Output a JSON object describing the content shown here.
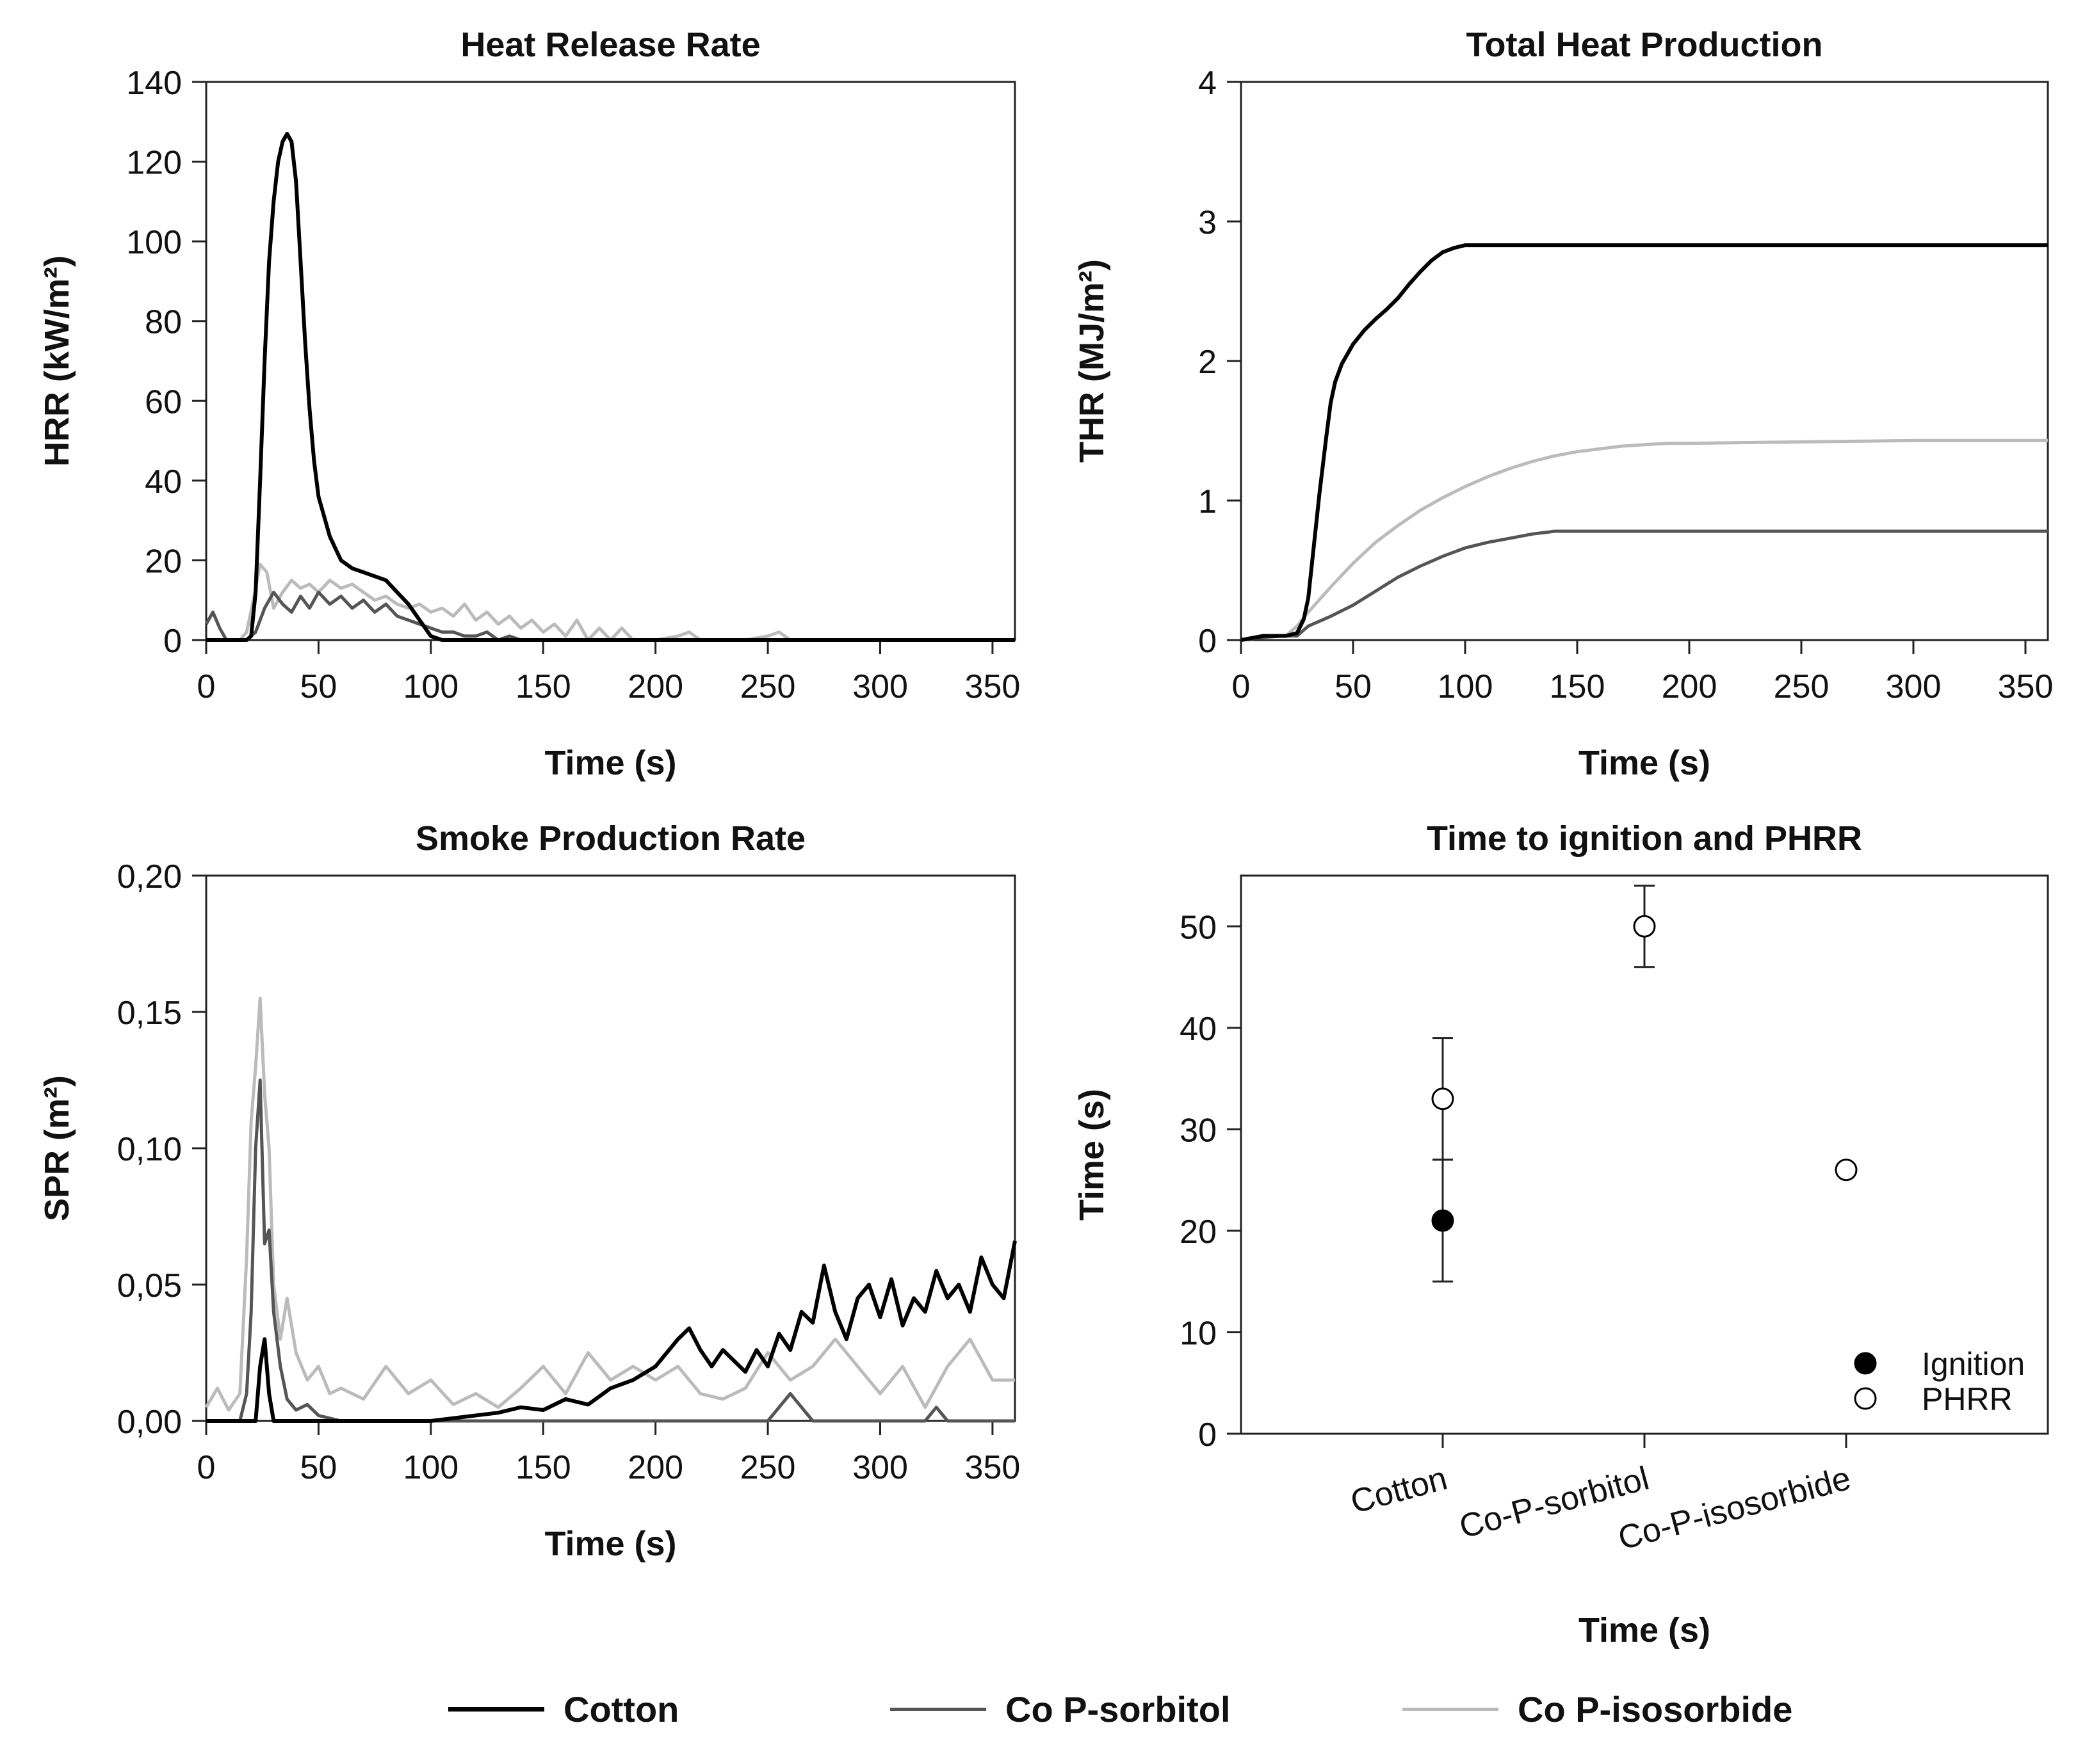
{
  "chart_data": [
    {
      "id": "hrr",
      "type": "line",
      "title": "Heat Release Rate",
      "xlabel": "Time (s)",
      "ylabel": "HRR (kW/m²)",
      "xlim": [
        0,
        360
      ],
      "ylim": [
        0,
        140
      ],
      "xticks": [
        0,
        50,
        100,
        150,
        200,
        250,
        300,
        350
      ],
      "yticks": [
        0,
        20,
        40,
        60,
        80,
        100,
        120,
        140
      ],
      "ytick_labels": [
        "0",
        "20",
        "40",
        "60",
        "80",
        "100",
        "120",
        "140"
      ],
      "series": [
        {
          "name": "Cotton",
          "color": "#000000",
          "x": [
            0,
            5,
            10,
            15,
            18,
            20,
            22,
            24,
            26,
            28,
            30,
            32,
            34,
            36,
            38,
            40,
            42,
            44,
            46,
            48,
            50,
            55,
            60,
            65,
            70,
            75,
            80,
            85,
            90,
            95,
            100,
            105,
            110,
            120,
            150,
            200,
            250,
            300,
            360
          ],
          "y": [
            0,
            0,
            0,
            0,
            0,
            1,
            12,
            40,
            70,
            95,
            110,
            120,
            125,
            127,
            125,
            115,
            95,
            75,
            58,
            45,
            36,
            26,
            20,
            18,
            17,
            16,
            15,
            12,
            9,
            5,
            1,
            0,
            0,
            0,
            0,
            0,
            0,
            0,
            0
          ]
        },
        {
          "name": "Co P-sorbitol",
          "color": "#555555",
          "x": [
            0,
            3,
            6,
            9,
            12,
            15,
            18,
            22,
            26,
            30,
            34,
            38,
            42,
            46,
            50,
            55,
            60,
            65,
            70,
            75,
            80,
            85,
            90,
            95,
            100,
            105,
            110,
            115,
            120,
            125,
            130,
            135,
            140,
            150,
            200,
            250,
            300,
            360
          ],
          "y": [
            4,
            7,
            3,
            0,
            0,
            0,
            0,
            2,
            8,
            12,
            9,
            7,
            11,
            8,
            12,
            9,
            11,
            8,
            10,
            7,
            9,
            6,
            5,
            4,
            3,
            2,
            2,
            1,
            1,
            2,
            0,
            1,
            0,
            0,
            0,
            0,
            0,
            0
          ]
        },
        {
          "name": "Co P-isosorbide",
          "color": "#bbbbbb",
          "x": [
            0,
            5,
            10,
            15,
            18,
            21,
            24,
            27,
            30,
            34,
            38,
            42,
            46,
            50,
            55,
            60,
            65,
            70,
            75,
            80,
            85,
            90,
            95,
            100,
            105,
            110,
            115,
            120,
            125,
            130,
            135,
            140,
            145,
            150,
            155,
            160,
            165,
            170,
            175,
            180,
            185,
            190,
            200,
            210,
            215,
            220,
            240,
            250,
            255,
            260,
            280,
            300,
            360
          ],
          "y": [
            0,
            0,
            0,
            0,
            2,
            10,
            19,
            17,
            8,
            12,
            15,
            13,
            14,
            12,
            15,
            13,
            14,
            12,
            10,
            11,
            9,
            8,
            9,
            7,
            8,
            6,
            9,
            5,
            7,
            4,
            6,
            3,
            5,
            2,
            4,
            1,
            5,
            0,
            3,
            0,
            3,
            0,
            0,
            1,
            2,
            0,
            0,
            1,
            2,
            0,
            0,
            0,
            0
          ]
        }
      ]
    },
    {
      "id": "thr",
      "type": "line",
      "title": "Total Heat Production",
      "xlabel": "Time (s)",
      "ylabel": "THR (MJ/m²)",
      "xlim": [
        0,
        360
      ],
      "ylim": [
        0,
        4
      ],
      "xticks": [
        0,
        50,
        100,
        150,
        200,
        250,
        300,
        350
      ],
      "yticks": [
        0,
        1,
        2,
        3,
        4
      ],
      "ytick_labels": [
        "0",
        "1",
        "2",
        "3",
        "4"
      ],
      "series": [
        {
          "name": "Cotton",
          "color": "#000000",
          "x": [
            0,
            10,
            20,
            25,
            28,
            30,
            32,
            35,
            38,
            40,
            42,
            45,
            50,
            55,
            60,
            65,
            70,
            75,
            80,
            85,
            90,
            95,
            100,
            110,
            150,
            200,
            250,
            300,
            360
          ],
          "y": [
            0,
            0.03,
            0.03,
            0.05,
            0.15,
            0.3,
            0.6,
            1.05,
            1.45,
            1.7,
            1.85,
            1.98,
            2.12,
            2.22,
            2.3,
            2.37,
            2.45,
            2.55,
            2.64,
            2.72,
            2.78,
            2.81,
            2.83,
            2.83,
            2.83,
            2.83,
            2.83,
            2.83,
            2.83
          ]
        },
        {
          "name": "Co P-sorbitol",
          "color": "#555555",
          "x": [
            0,
            10,
            20,
            25,
            30,
            40,
            50,
            60,
            70,
            80,
            90,
            100,
            110,
            120,
            130,
            140,
            150,
            200,
            250,
            300,
            360
          ],
          "y": [
            0,
            0.02,
            0.03,
            0.03,
            0.1,
            0.17,
            0.25,
            0.35,
            0.45,
            0.53,
            0.6,
            0.66,
            0.7,
            0.73,
            0.76,
            0.78,
            0.78,
            0.78,
            0.78,
            0.78,
            0.78
          ]
        },
        {
          "name": "Co P-isosorbide",
          "color": "#bbbbbb",
          "x": [
            0,
            10,
            20,
            25,
            30,
            40,
            50,
            60,
            70,
            80,
            90,
            100,
            110,
            120,
            130,
            140,
            150,
            160,
            170,
            180,
            190,
            200,
            250,
            300,
            360
          ],
          "y": [
            0,
            0.02,
            0.03,
            0.1,
            0.2,
            0.38,
            0.55,
            0.7,
            0.82,
            0.93,
            1.02,
            1.1,
            1.17,
            1.23,
            1.28,
            1.32,
            1.35,
            1.37,
            1.39,
            1.4,
            1.41,
            1.41,
            1.42,
            1.43,
            1.43
          ]
        }
      ]
    },
    {
      "id": "spr",
      "type": "line",
      "title": "Smoke Production Rate",
      "xlabel": "Time (s)",
      "ylabel": "SPR (m²)",
      "xlim": [
        0,
        360
      ],
      "ylim": [
        0,
        0.2
      ],
      "xticks": [
        0,
        50,
        100,
        150,
        200,
        250,
        300,
        350
      ],
      "yticks": [
        0,
        0.05,
        0.1,
        0.15,
        0.2
      ],
      "ytick_labels": [
        "0,00",
        "0,05",
        "0,10",
        "0,15",
        "0,20"
      ],
      "series": [
        {
          "name": "Cotton",
          "color": "#000000",
          "x": [
            0,
            10,
            15,
            18,
            20,
            22,
            24,
            26,
            28,
            30,
            35,
            40,
            60,
            100,
            130,
            140,
            150,
            160,
            170,
            180,
            190,
            200,
            205,
            210,
            215,
            220,
            225,
            230,
            235,
            240,
            245,
            250,
            255,
            260,
            265,
            270,
            275,
            280,
            285,
            290,
            295,
            300,
            305,
            310,
            315,
            320,
            325,
            330,
            335,
            340,
            345,
            350,
            355,
            360
          ],
          "y": [
            0,
            0,
            0,
            0,
            0,
            0,
            0.02,
            0.03,
            0.01,
            0,
            0,
            0,
            0,
            0,
            0.003,
            0.005,
            0.004,
            0.008,
            0.006,
            0.012,
            0.015,
            0.02,
            0.025,
            0.03,
            0.034,
            0.026,
            0.02,
            0.026,
            0.022,
            0.018,
            0.026,
            0.02,
            0.032,
            0.026,
            0.04,
            0.036,
            0.057,
            0.04,
            0.03,
            0.045,
            0.05,
            0.038,
            0.052,
            0.035,
            0.045,
            0.04,
            0.055,
            0.045,
            0.05,
            0.04,
            0.06,
            0.05,
            0.045,
            0.066
          ]
        },
        {
          "name": "Co P-sorbitol",
          "color": "#555555",
          "x": [
            0,
            10,
            15,
            18,
            20,
            22,
            24,
            26,
            28,
            30,
            33,
            36,
            40,
            45,
            50,
            60,
            100,
            150,
            200,
            250,
            260,
            270,
            280,
            300,
            320,
            325,
            330,
            340,
            360
          ],
          "y": [
            0,
            0,
            0,
            0.01,
            0.04,
            0.1,
            0.125,
            0.065,
            0.07,
            0.04,
            0.02,
            0.008,
            0.004,
            0.006,
            0.002,
            0,
            0,
            0,
            0,
            0,
            0.01,
            0,
            0,
            0,
            0,
            0.005,
            0,
            0,
            0
          ]
        },
        {
          "name": "Co P-isosorbide",
          "color": "#bbbbbb",
          "x": [
            0,
            5,
            10,
            15,
            18,
            20,
            22,
            24,
            26,
            28,
            30,
            33,
            36,
            40,
            45,
            50,
            55,
            60,
            70,
            80,
            90,
            100,
            110,
            120,
            130,
            140,
            150,
            160,
            170,
            180,
            190,
            200,
            210,
            220,
            230,
            240,
            250,
            260,
            270,
            280,
            290,
            300,
            310,
            320,
            330,
            340,
            350,
            360
          ],
          "y": [
            0.005,
            0.012,
            0.004,
            0.01,
            0.06,
            0.11,
            0.13,
            0.155,
            0.12,
            0.1,
            0.05,
            0.03,
            0.045,
            0.025,
            0.015,
            0.02,
            0.01,
            0.012,
            0.008,
            0.02,
            0.01,
            0.015,
            0.006,
            0.01,
            0.005,
            0.012,
            0.02,
            0.01,
            0.025,
            0.015,
            0.02,
            0.015,
            0.02,
            0.01,
            0.008,
            0.012,
            0.025,
            0.015,
            0.02,
            0.03,
            0.02,
            0.01,
            0.02,
            0.005,
            0.02,
            0.03,
            0.015,
            0.015
          ]
        }
      ]
    },
    {
      "id": "tti",
      "type": "scatter",
      "title": "Time to ignition and PHRR",
      "xlabel": "Time (s)",
      "ylabel": "Time (s)",
      "ylim": [
        0,
        55
      ],
      "yticks": [
        0,
        10,
        20,
        30,
        40,
        50
      ],
      "ytick_labels": [
        "0",
        "10",
        "20",
        "30",
        "40",
        "50"
      ],
      "categories": [
        "Cotton",
        "Co-P-sorbitol",
        "Co-P-isosorbide"
      ],
      "series": [
        {
          "name": "Ignition",
          "marker": "filled",
          "values": [
            21,
            null,
            null
          ],
          "errors": [
            6,
            null,
            null
          ]
        },
        {
          "name": "PHRR",
          "marker": "open",
          "values": [
            33,
            50,
            26
          ],
          "errors": [
            6,
            4,
            0.5
          ]
        }
      ]
    }
  ],
  "legend": [
    {
      "label": "Cotton",
      "color": "#000000"
    },
    {
      "label": "Co P-sorbitol",
      "color": "#555555"
    },
    {
      "label": "Co P-isosorbide",
      "color": "#bbbbbb"
    }
  ]
}
